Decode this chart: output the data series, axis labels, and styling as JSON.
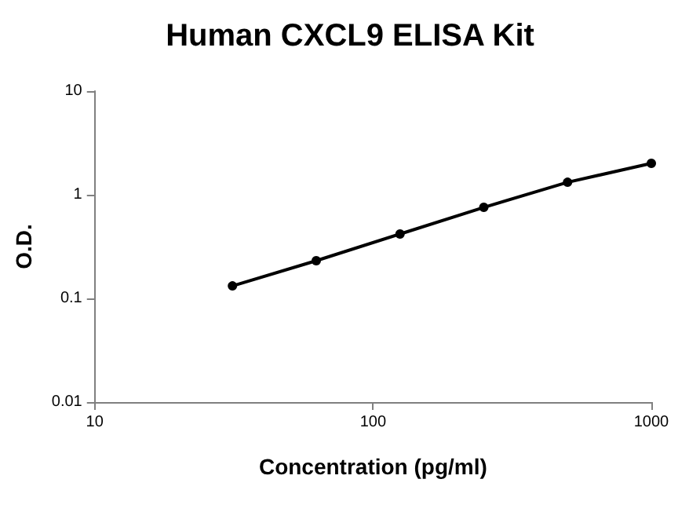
{
  "chart_data": {
    "type": "line",
    "title": "Human CXCL9 ELISA Kit",
    "xlabel": "Concentration (pg/ml)",
    "ylabel": "O.D.",
    "x": [
      31.25,
      62.5,
      125,
      250,
      500,
      1000
    ],
    "series": [
      {
        "color": "#000000",
        "values": [
          0.132,
          0.231,
          0.418,
          0.756,
          1.32,
          2.01
        ]
      }
    ],
    "log": "xy",
    "xlim": [
      10,
      1000
    ],
    "xticks": [
      10,
      100,
      1000
    ],
    "ylim": [
      0.01,
      10
    ],
    "yticks": [
      0.01,
      0.1,
      1,
      10
    ],
    "grid": false,
    "marker": "circle",
    "line_style": "solid"
  }
}
